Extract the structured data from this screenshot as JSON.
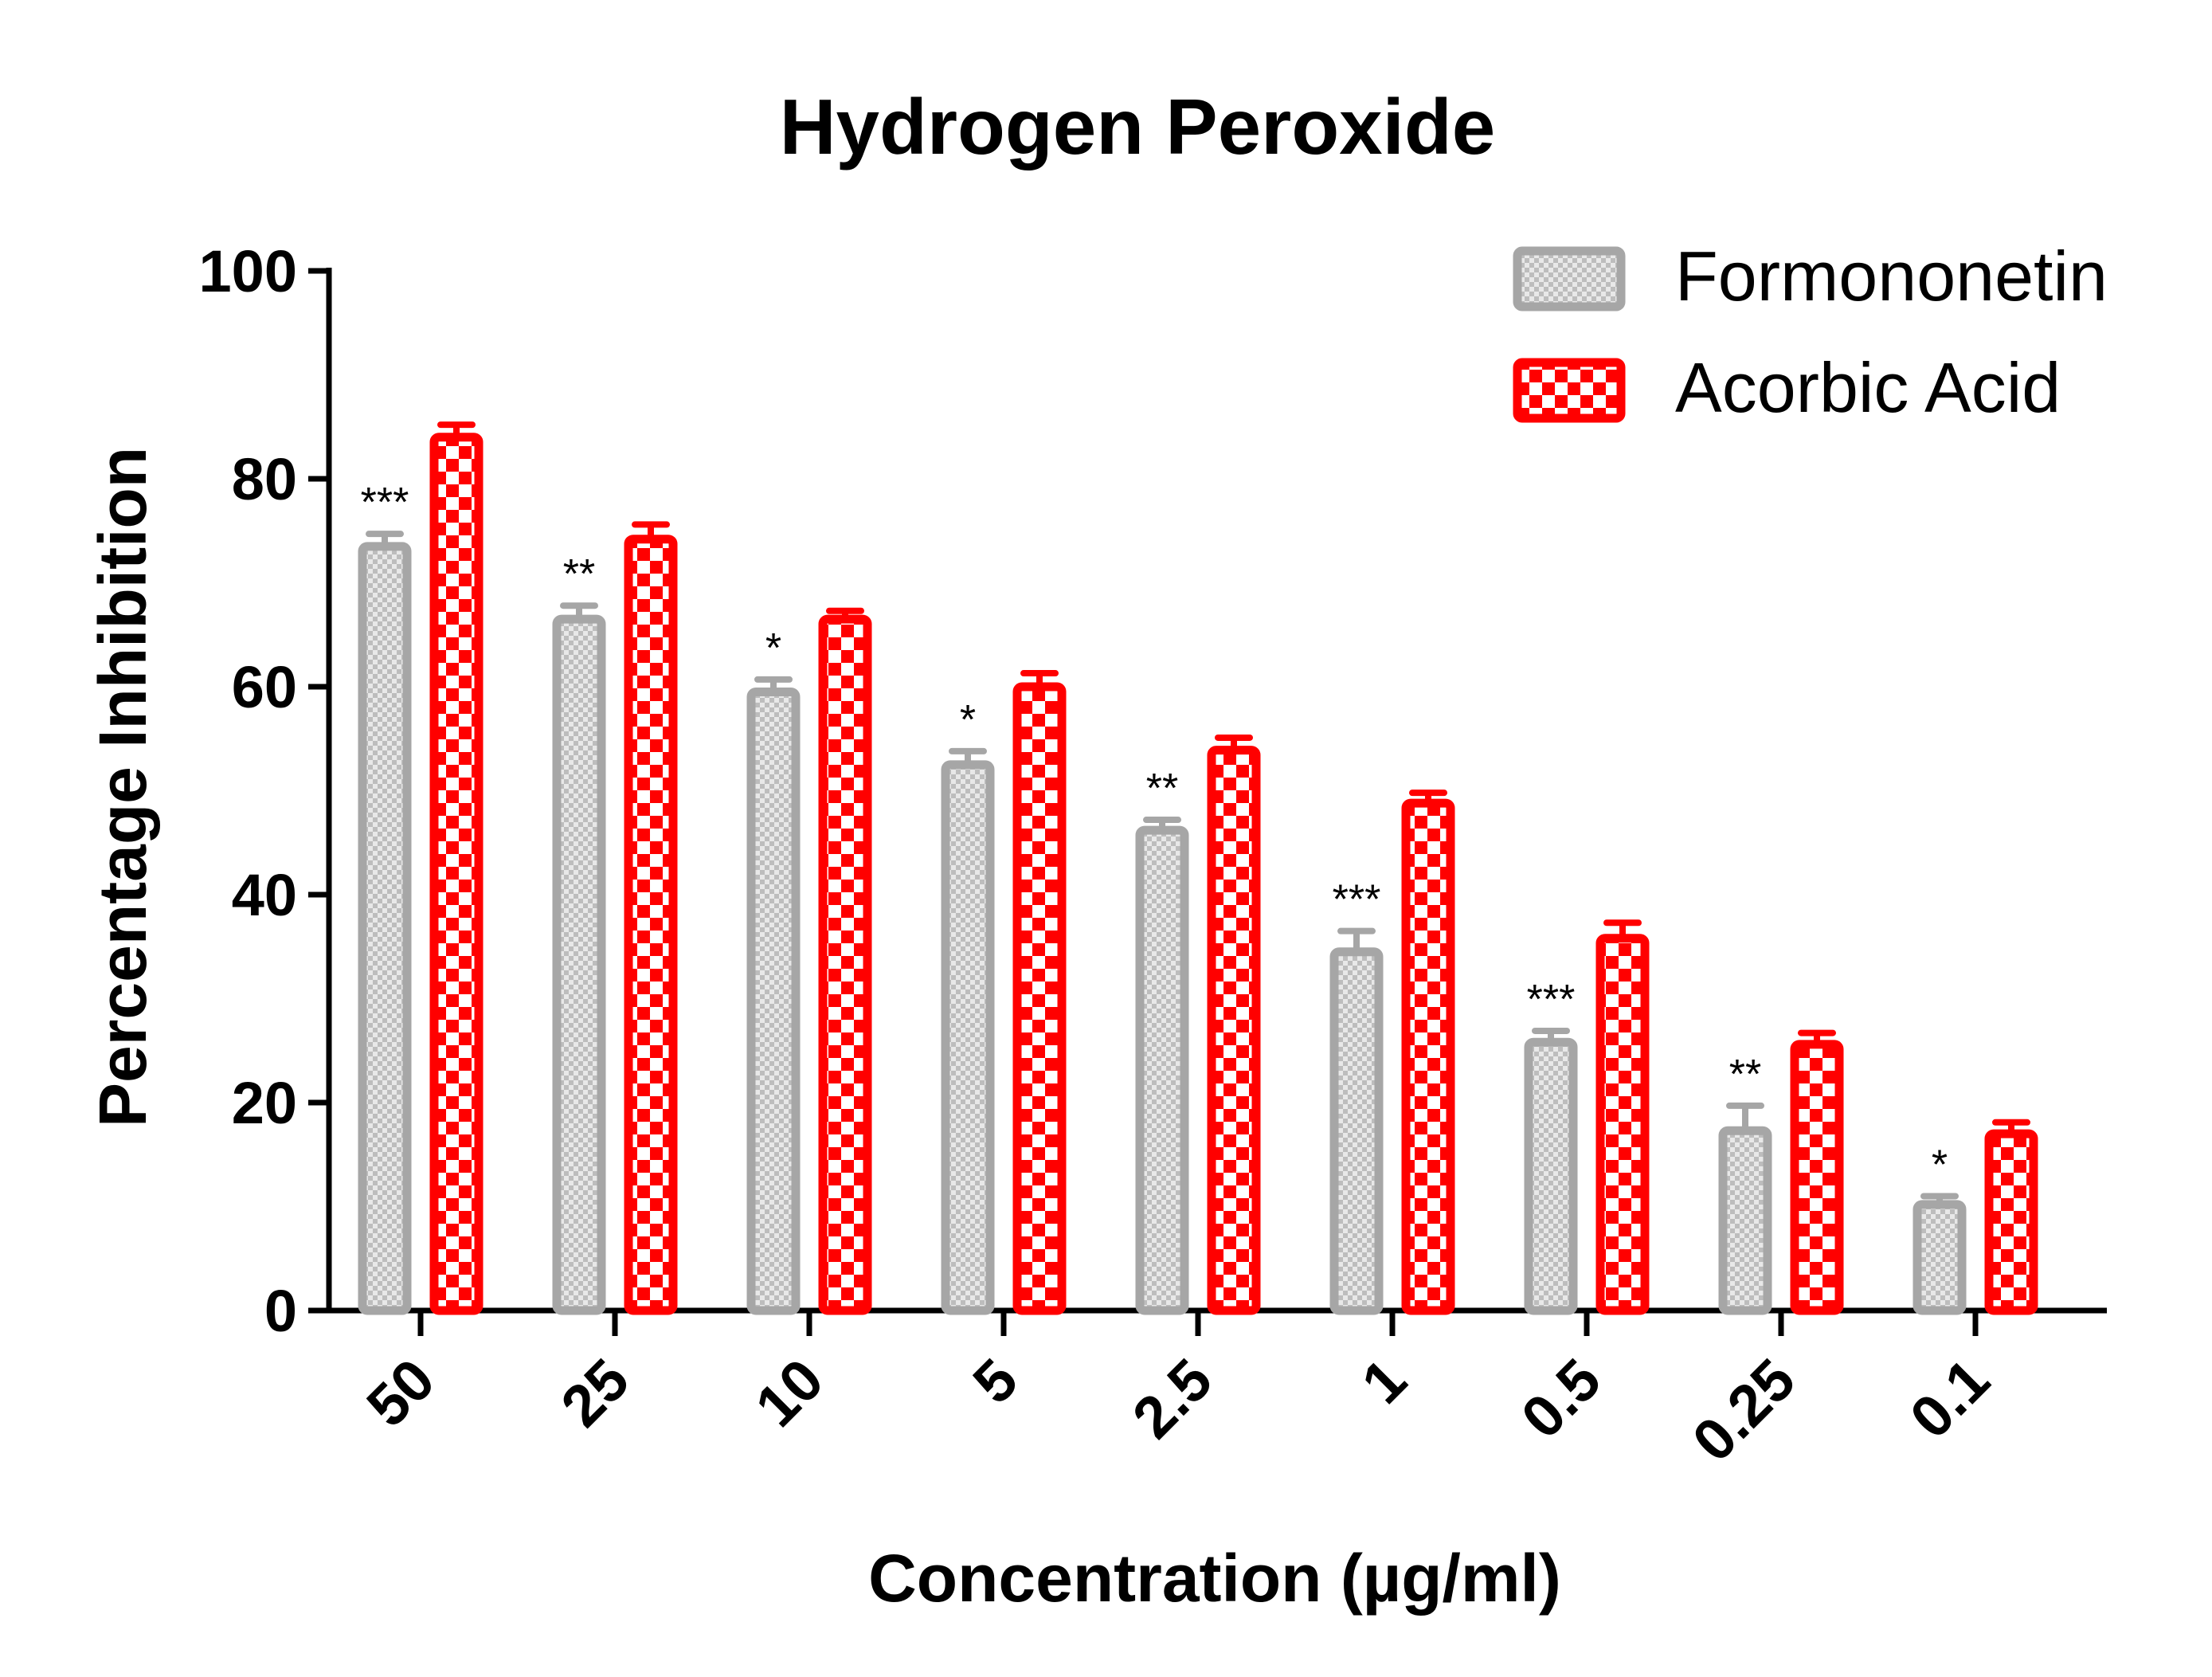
{
  "chart_data": {
    "type": "bar",
    "title": "Hydrogen Peroxide",
    "xlabel": "Concentration (µg/ml)",
    "ylabel": "Percentage Inhibition",
    "ylim": [
      0,
      100
    ],
    "yticks": [
      0,
      20,
      40,
      60,
      80,
      100
    ],
    "categories": [
      "50",
      "25",
      "10",
      "5",
      "2.5",
      "1",
      "0.5",
      "0.25",
      "0.1"
    ],
    "legend_position": "top-right",
    "grid": false,
    "series": [
      {
        "name": "Formononetin",
        "color": "#a6a6a6",
        "pattern": "fine-checker",
        "values": [
          73.5,
          66.5,
          59.5,
          52.5,
          46.2,
          34.5,
          25.8,
          17.3,
          10.2
        ],
        "errors": [
          1.2,
          1.3,
          1.2,
          1.3,
          1.0,
          2.0,
          1.1,
          2.4,
          0.8
        ],
        "significance": [
          "***",
          "**",
          "*",
          "*",
          "**",
          "***",
          "***",
          "**",
          "*"
        ]
      },
      {
        "name": "Acorbic Acid",
        "color": "#ff0000",
        "pattern": "coarse-checker",
        "values": [
          84.0,
          74.2,
          66.5,
          60.0,
          53.9,
          48.8,
          35.8,
          25.6,
          17.0
        ],
        "errors": [
          1.2,
          1.4,
          0.8,
          1.3,
          1.2,
          1.0,
          1.5,
          1.1,
          1.1
        ]
      }
    ]
  }
}
